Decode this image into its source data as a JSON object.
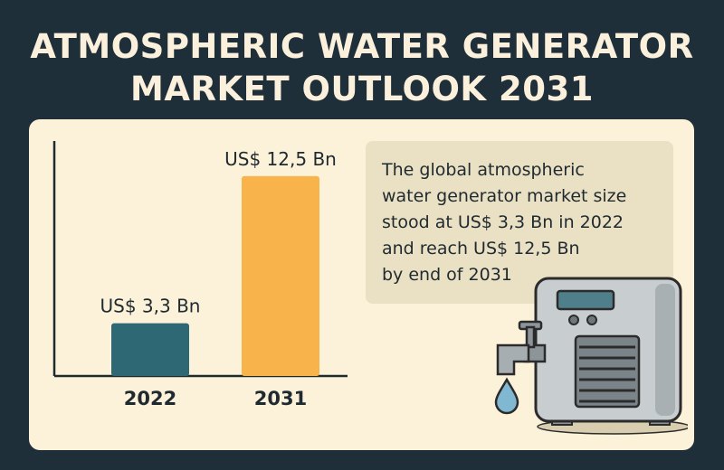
{
  "title_line1": "ATMOSPHERIC WATER GENERATOR",
  "title_line2": "MARKET OUTLOOK 2031",
  "callout": {
    "line1": "The global atmospheric",
    "line2": "water generator market size",
    "line3": "stood at US$ 3,3 Bn in 2022",
    "line4": "and reach US$ 12,5 Bn",
    "line5": "by end of 2031"
  },
  "colors": {
    "background": "#1f2f3a",
    "panel": "#fcf1d9",
    "bar_2022": "#2f6875",
    "bar_2031": "#f8b44a"
  },
  "icons": [
    "atmospheric-water-generator-icon",
    "water-tap-icon",
    "water-drop-icon"
  ],
  "chart_data": {
    "type": "bar",
    "categories": [
      "2022",
      "2031"
    ],
    "values": [
      3.3,
      12.5
    ],
    "data_labels": [
      "US$ 3,3 Bn",
      "US$ 12,5 Bn"
    ],
    "colors": [
      "#2f6875",
      "#f8b44a"
    ],
    "ylim": [
      0,
      14.7
    ],
    "grid": false,
    "legend": "none"
  }
}
